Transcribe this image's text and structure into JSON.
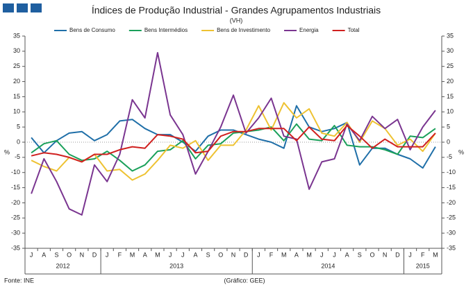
{
  "chart_data": {
    "type": "line",
    "title": "Índices de Produção Industrial - Grandes Agrupamentos Industriais",
    "subtitle": "(VH)",
    "y_label": "%",
    "source": "Fonte: INE",
    "credit": "(Gráfico: GEE)",
    "categories": [
      "J",
      "A",
      "S",
      "O",
      "N",
      "D",
      "J",
      "F",
      "M",
      "A",
      "M",
      "J",
      "J",
      "A",
      "S",
      "O",
      "N",
      "D",
      "J",
      "F",
      "M",
      "A",
      "M",
      "J",
      "J",
      "A",
      "S",
      "O",
      "N",
      "D",
      "J",
      "F",
      "M"
    ],
    "years": [
      "2012",
      "2013",
      "2014",
      "2015"
    ],
    "ylim": [
      -35,
      35
    ],
    "yticks": [
      -35,
      -30,
      -25,
      -20,
      -15,
      -10,
      -5,
      0,
      5,
      10,
      15,
      20,
      25,
      30,
      35
    ],
    "zero_line": true,
    "series": [
      {
        "name": "Bens de Consumo",
        "color": "#1f6fa8",
        "values": [
          1.5,
          -3.5,
          0.5,
          3,
          3.5,
          0.5,
          2.5,
          7,
          7.5,
          4.5,
          2.5,
          2.5,
          0,
          -3,
          2,
          4,
          4,
          2.5,
          1,
          0,
          -2,
          12,
          5,
          3.5,
          4.5,
          6.5,
          -7.5,
          -2,
          -2,
          -4,
          -5.5,
          -8.5,
          -1.5
        ]
      },
      {
        "name": "Bens Intermédios",
        "color": "#1aa05a",
        "values": [
          -3.5,
          -0.5,
          0.5,
          -4,
          -6,
          -5.5,
          -3,
          -6,
          -9.5,
          -7.5,
          -3,
          -2.5,
          0.5,
          -5.5,
          -1,
          -0.5,
          3,
          3.5,
          4,
          5,
          0.5,
          6,
          1,
          0.5,
          5.5,
          -1,
          -1.5,
          -1.5,
          -2.5,
          -4,
          2,
          1.5,
          4.5
        ]
      },
      {
        "name": "Bens de Investimento",
        "color": "#eec232",
        "values": [
          -6,
          -8,
          -9.5,
          -5,
          -6.5,
          -4,
          -9.5,
          -9,
          -12.5,
          -10.5,
          -6,
          -1,
          -2,
          0.5,
          -6,
          -1,
          -1,
          4,
          12,
          4,
          13,
          8,
          11,
          3,
          2,
          6.5,
          0,
          7,
          4.5,
          -1,
          1,
          -3,
          3
        ]
      },
      {
        "name": "Energia",
        "color": "#7a3590",
        "values": [
          -17,
          -5.5,
          -13,
          -22,
          -24,
          -7.5,
          -13,
          -4,
          14,
          8,
          29.5,
          9,
          2.5,
          -10.5,
          -3,
          5,
          15.5,
          3,
          8,
          14.5,
          2,
          1,
          -15.5,
          -6.5,
          -5.5,
          6,
          0.5,
          8.5,
          4.5,
          7.5,
          -2.5,
          5,
          10.5
        ]
      },
      {
        "name": "Total",
        "color": "#d0201f",
        "values": [
          -4.5,
          -3.5,
          -4,
          -5,
          -6.5,
          -4,
          -4,
          -2.5,
          -1.5,
          -2,
          2.5,
          2,
          1,
          -3.5,
          -3,
          2,
          3.5,
          3.5,
          4.5,
          4.5,
          4.5,
          0.5,
          5,
          1,
          0.5,
          5.5,
          2,
          -2,
          1,
          -1.5,
          -1.5,
          -1.5,
          3
        ]
      }
    ]
  }
}
